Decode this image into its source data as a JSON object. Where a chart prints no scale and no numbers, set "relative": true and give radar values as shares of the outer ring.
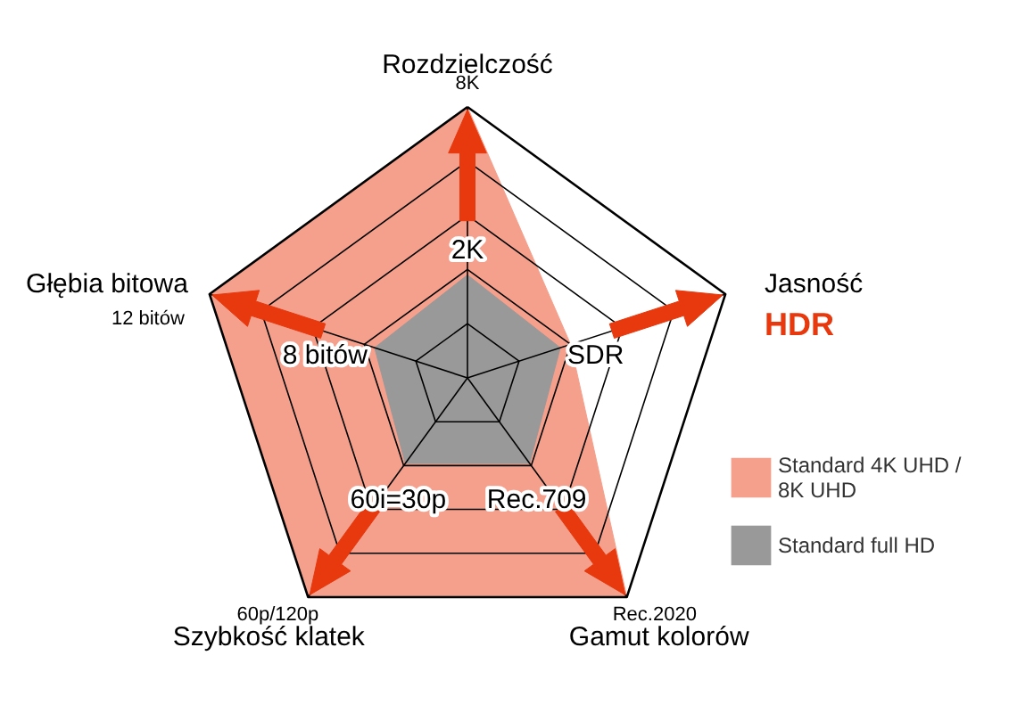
{
  "chart_data": {
    "type": "radar",
    "relative": true,
    "grid": true,
    "legend": "right",
    "categories": [
      "Rozdzielczość",
      "Jasność",
      "Gamut kolorów",
      "Szybkość klatek",
      "Głębia bitowa"
    ],
    "series": [
      {
        "name": "Standard 4K UHD / 8K UHD",
        "color": "#f4a08c",
        "values": [
          1,
          0.4,
          1,
          1,
          1
        ]
      },
      {
        "name": "Standard full HD",
        "color": "#999999",
        "values": [
          0.38,
          0.36,
          0.39,
          0.39,
          0.36
        ]
      }
    ],
    "annotations": [
      "2K",
      "SDR",
      "Rec.709",
      "60i=30p",
      "8 bitów",
      "8K",
      "HDR",
      "Rec.2020",
      "60p/120p",
      "12 bitów"
    ]
  }
}
